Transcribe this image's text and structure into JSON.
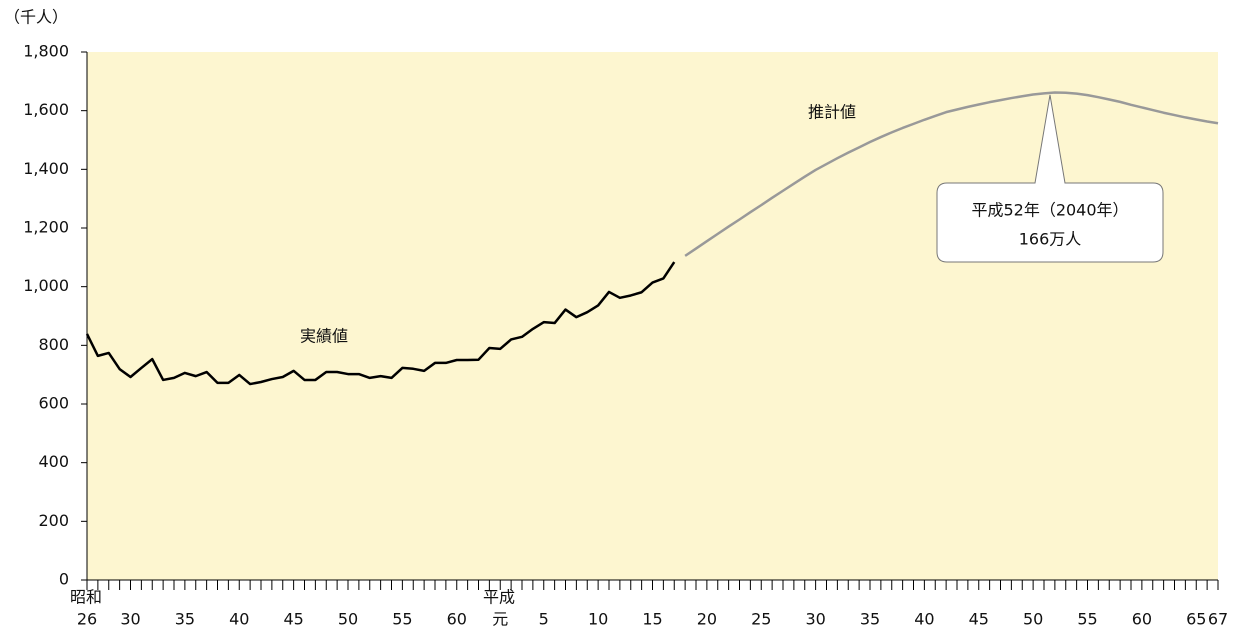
{
  "chart_data": {
    "type": "line",
    "y_axis_label": "（千人）",
    "era_labels": [
      "昭和",
      "平成"
    ],
    "annotation": [
      "平成52年（2040年）",
      "166万人"
    ],
    "categories": [
      "26",
      null,
      null,
      null,
      "30",
      null,
      null,
      null,
      null,
      "35",
      null,
      null,
      null,
      null,
      "40",
      null,
      null,
      null,
      null,
      "45",
      null,
      null,
      null,
      null,
      "50",
      null,
      null,
      null,
      null,
      "55",
      null,
      null,
      null,
      null,
      "60",
      null,
      null,
      null,
      "元",
      null,
      null,
      null,
      "5",
      null,
      null,
      null,
      null,
      "10",
      null,
      null,
      null,
      null,
      "15",
      null,
      null,
      null,
      null,
      "20",
      null,
      null,
      null,
      null,
      "25",
      null,
      null,
      null,
      null,
      "30",
      null,
      null,
      null,
      null,
      "35",
      null,
      null,
      null,
      null,
      "40",
      null,
      null,
      null,
      null,
      "45",
      null,
      null,
      null,
      null,
      "50",
      null,
      null,
      null,
      null,
      "55",
      null,
      null,
      null,
      null,
      "60",
      null,
      null,
      null,
      null,
      "65",
      null,
      "67"
    ],
    "series": [
      {
        "name": "実績値",
        "color": "#000000",
        "values": [
          839,
          764,
          774,
          719,
          692,
          723,
          753,
          682,
          689,
          706,
          695,
          709,
          672,
          672,
          699,
          668,
          675,
          685,
          692,
          713,
          682,
          682,
          709,
          709,
          702,
          702,
          689,
          695,
          689,
          723,
          720,
          713,
          740,
          740,
          750,
          750,
          751,
          791,
          788,
          820,
          829,
          856,
          879,
          876,
          922,
          896,
          913,
          936,
          982,
          962,
          970,
          981,
          1014,
          1028,
          1084,
          null,
          null,
          null,
          null,
          null,
          null,
          null,
          null,
          null,
          null,
          null,
          null,
          null,
          null,
          null,
          null,
          null,
          null,
          null,
          null,
          null,
          null,
          null,
          null,
          null,
          null,
          null,
          null,
          null,
          null,
          null,
          null,
          null,
          null,
          null,
          null,
          null,
          null,
          null,
          null,
          null,
          null,
          null,
          null,
          null,
          null,
          null,
          null,
          null,
          null
        ]
      },
      {
        "name": "推計値",
        "color": "#999999",
        "values": [
          null,
          null,
          null,
          null,
          null,
          null,
          null,
          null,
          null,
          null,
          null,
          null,
          null,
          null,
          null,
          null,
          null,
          null,
          null,
          null,
          null,
          null,
          null,
          null,
          null,
          null,
          null,
          null,
          null,
          null,
          null,
          null,
          null,
          null,
          null,
          null,
          null,
          null,
          null,
          null,
          null,
          null,
          null,
          null,
          null,
          null,
          null,
          null,
          null,
          null,
          null,
          null,
          null,
          null,
          null,
          1105,
          1130,
          1155,
          1180,
          1205,
          1229,
          1254,
          1278,
          1303,
          1327,
          1351,
          1375,
          1398,
          1418,
          1438,
          1457,
          1475,
          1493,
          1510,
          1526,
          1541,
          1555,
          1569,
          1582,
          1595,
          1604,
          1613,
          1621,
          1629,
          1636,
          1643,
          1649,
          1655,
          1659,
          1662,
          1661,
          1658,
          1653,
          1646,
          1638,
          1630,
          1620,
          1611,
          1602,
          1593,
          1585,
          1577,
          1570,
          1563,
          1557
        ]
      }
    ],
    "ylim": [
      0,
      1800
    ],
    "yticks": [
      0,
      200,
      400,
      600,
      800,
      {
        "value": 1000,
        "label": "1,000"
      },
      {
        "value": 1200,
        "label": "1,200"
      },
      {
        "value": 1400,
        "label": "1,400"
      },
      {
        "value": 1600,
        "label": "1,600"
      },
      {
        "value": 1800,
        "label": "1,800"
      }
    ],
    "background": "#fdf6d0"
  }
}
